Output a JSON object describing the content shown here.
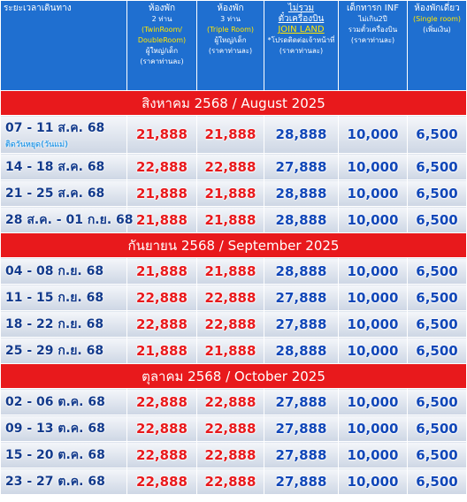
{
  "header": {
    "columns": [
      [
        "ระยะเวลาเดินทาง"
      ],
      [
        "ห้องพัก",
        "2 ท่าน",
        "(TwinRoom/",
        "DoubleRoom)",
        "ผู้ใหญ่/เด็ก",
        "(ราคาท่านละ)"
      ],
      [
        "ห้องพัก",
        "3 ท่าน",
        "(Triple Room)",
        "ผู้ใหญ่/เด็ก",
        "(ราคาท่านละ)"
      ],
      [
        "ไม่รวม",
        "ตั๋วเครื่องบิน",
        "JOIN LAND",
        "*โปรดติดต่อเจ้าหน้าที่",
        "(ราคาท่านละ)"
      ],
      [
        "เด็กทารก INF",
        "ไม่เกิน2ปี",
        "รวมตั๋วเครื่องบิน",
        "(ราคาท่านละ)"
      ],
      [
        "ห้องพักเดี่ยว",
        "(Single room)",
        "(เพิ่มเงิน)"
      ]
    ]
  },
  "sections": [
    {
      "title": "สิงหาคม 2568 / August 2025",
      "rows": [
        {
          "dates": "07 - 11 ส.ค. 68",
          "note": "ติดวันหยุด(วันแม่)",
          "prices": [
            "21,888",
            "21,888",
            "28,888",
            "10,000",
            "6,500"
          ]
        },
        {
          "dates": "14 - 18 ส.ค. 68",
          "prices": [
            "22,888",
            "22,888",
            "27,888",
            "10,000",
            "6,500"
          ]
        },
        {
          "dates": "21 - 25 ส.ค. 68",
          "prices": [
            "21,888",
            "21,888",
            "28,888",
            "10,000",
            "6,500"
          ]
        },
        {
          "dates": "28 ส.ค. - 01 ก.ย. 68",
          "prices": [
            "21,888",
            "21,888",
            "28,888",
            "10,000",
            "6,500"
          ]
        }
      ]
    },
    {
      "title": "กันยายน 2568 / September 2025",
      "rows": [
        {
          "dates": "04 - 08 ก.ย. 68",
          "prices": [
            "21,888",
            "21,888",
            "28,888",
            "10,000",
            "6,500"
          ]
        },
        {
          "dates": "11 - 15 ก.ย. 68",
          "prices": [
            "22,888",
            "22,888",
            "27,888",
            "10,000",
            "6,500"
          ]
        },
        {
          "dates": "18 - 22 ก.ย. 68",
          "prices": [
            "22,888",
            "22,888",
            "27,888",
            "10,000",
            "6,500"
          ]
        },
        {
          "dates": "25 - 29 ก.ย. 68",
          "prices": [
            "21,888",
            "21,888",
            "28,888",
            "10,000",
            "6,500"
          ]
        }
      ]
    },
    {
      "title": "ตุลาคม 2568 / October 2025",
      "rows": [
        {
          "dates": "02 - 06 ต.ค. 68",
          "prices": [
            "22,888",
            "22,888",
            "27,888",
            "10,000",
            "6,500"
          ]
        },
        {
          "dates": "09 - 13 ต.ค. 68",
          "prices": [
            "22,888",
            "22,888",
            "27,888",
            "10,000",
            "6,500"
          ]
        },
        {
          "dates": "15 - 20 ต.ค. 68",
          "prices": [
            "22,888",
            "22,888",
            "27,888",
            "10,000",
            "6,500"
          ]
        },
        {
          "dates": "23 - 27 ต.ค. 68",
          "prices": [
            "22,888",
            "22,888",
            "27,888",
            "10,000",
            "6,500"
          ]
        }
      ]
    }
  ]
}
